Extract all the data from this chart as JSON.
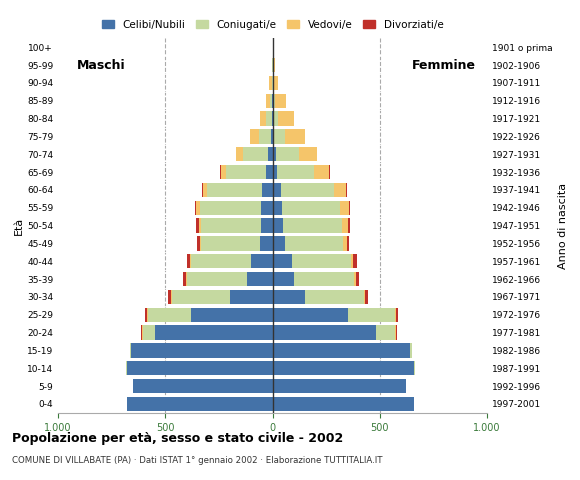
{
  "age_groups": [
    "0-4",
    "5-9",
    "10-14",
    "15-19",
    "20-24",
    "25-29",
    "30-34",
    "35-39",
    "40-44",
    "45-49",
    "50-54",
    "55-59",
    "60-64",
    "65-69",
    "70-74",
    "75-79",
    "80-84",
    "85-89",
    "90-94",
    "95-99",
    "100+"
  ],
  "birth_years": [
    "1997-2001",
    "1992-1996",
    "1987-1991",
    "1982-1986",
    "1977-1981",
    "1972-1976",
    "1967-1971",
    "1962-1966",
    "1957-1961",
    "1952-1956",
    "1947-1951",
    "1942-1946",
    "1937-1941",
    "1932-1936",
    "1927-1931",
    "1922-1926",
    "1917-1921",
    "1912-1916",
    "1907-1911",
    "1902-1906",
    "1901 o prima"
  ],
  "colors": {
    "celibe": "#4472a8",
    "coniugato": "#c5d9a0",
    "vedovo": "#f5c56a",
    "divorziato": "#c0302a"
  },
  "males": {
    "celibe": [
      680,
      650,
      680,
      660,
      550,
      380,
      200,
      120,
      100,
      60,
      55,
      55,
      50,
      30,
      20,
      8,
      4,
      2,
      0,
      0,
      0
    ],
    "coniugato": [
      0,
      0,
      2,
      5,
      55,
      200,
      270,
      280,
      280,
      275,
      280,
      285,
      255,
      185,
      120,
      55,
      25,
      10,
      5,
      2,
      0
    ],
    "vedovo": [
      0,
      0,
      0,
      0,
      5,
      5,
      5,
      5,
      5,
      5,
      10,
      15,
      20,
      25,
      30,
      40,
      30,
      20,
      10,
      3,
      0
    ],
    "divorziato": [
      0,
      0,
      0,
      0,
      5,
      10,
      12,
      12,
      15,
      10,
      10,
      8,
      5,
      5,
      2,
      0,
      0,
      0,
      0,
      0,
      0
    ]
  },
  "females": {
    "celibe": [
      660,
      620,
      660,
      640,
      480,
      350,
      150,
      100,
      90,
      60,
      50,
      45,
      40,
      20,
      15,
      5,
      3,
      2,
      1,
      0,
      0
    ],
    "coniugato": [
      0,
      0,
      2,
      10,
      90,
      220,
      275,
      280,
      275,
      270,
      275,
      270,
      245,
      175,
      110,
      55,
      20,
      10,
      5,
      2,
      0
    ],
    "vedovo": [
      0,
      0,
      0,
      0,
      5,
      5,
      5,
      8,
      10,
      15,
      25,
      40,
      55,
      70,
      80,
      90,
      75,
      50,
      20,
      8,
      2
    ],
    "divorziato": [
      0,
      0,
      0,
      0,
      5,
      10,
      14,
      15,
      18,
      10,
      10,
      8,
      5,
      4,
      2,
      0,
      0,
      0,
      0,
      0,
      0
    ]
  },
  "title": "Popolazione per età, sesso e stato civile - 2002",
  "subtitle": "COMUNE DI VILLABATE (PA) · Dati ISTAT 1° gennaio 2002 · Elaborazione TUTTITALIA.IT",
  "xlabel_left": "Maschi",
  "xlabel_right": "Femmine",
  "ylabel": "Età",
  "ylabel_right": "Anno di nascita",
  "xlim": 1000,
  "legend_labels": [
    "Celibi/Nubili",
    "Coniugati/e",
    "Vedovi/e",
    "Divorziati/e"
  ],
  "bg_color": "#ffffff",
  "grid_color": "#aaaaaa",
  "bar_height": 0.8
}
